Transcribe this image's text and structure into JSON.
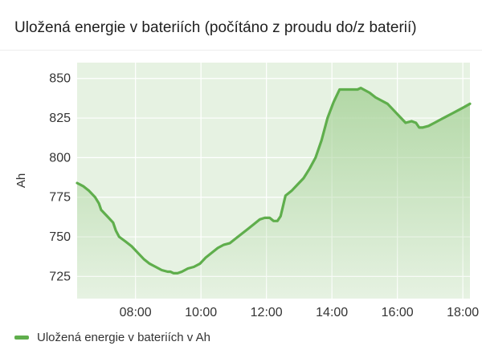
{
  "panel": {
    "title": "Uložená energie v bateriích (počítáno z proudu do/z baterií)"
  },
  "colors": {
    "line": "#5fae4c",
    "plot_background": "#e6f2e2",
    "grid": "#ffffff"
  },
  "chart_data": {
    "type": "area",
    "title": "Uložená energie v bateriích (počítáno z proudu do/z baterií)",
    "xlabel": "",
    "ylabel": "Ah",
    "x_tick_labels": [
      "08:00",
      "10:00",
      "12:00",
      "14:00",
      "16:00",
      "18:00"
    ],
    "y_tick_labels": [
      "725",
      "750",
      "775",
      "800",
      "825",
      "850"
    ],
    "xlim": [
      "06:13",
      "18:13"
    ],
    "ylim": [
      711,
      860
    ],
    "grid": true,
    "legend_position": "bottom-left",
    "series": [
      {
        "name": "Uložená energie v bateriích v Ah",
        "x": [
          "06:13",
          "06:24",
          "06:35",
          "06:46",
          "06:53",
          "06:57",
          "07:08",
          "07:19",
          "07:24",
          "07:30",
          "07:42",
          "07:53",
          "08:04",
          "08:15",
          "08:26",
          "08:37",
          "08:48",
          "08:59",
          "09:04",
          "09:10",
          "09:17",
          "09:25",
          "09:36",
          "09:47",
          "09:58",
          "10:09",
          "10:20",
          "10:31",
          "10:42",
          "10:53",
          "11:04",
          "11:15",
          "11:26",
          "11:37",
          "11:48",
          "11:57",
          "12:06",
          "12:13",
          "12:20",
          "12:26",
          "12:35",
          "12:46",
          "12:57",
          "13:08",
          "13:19",
          "13:30",
          "13:41",
          "13:52",
          "14:03",
          "14:14",
          "14:25",
          "14:36",
          "14:47",
          "14:53",
          "14:58",
          "15:09",
          "15:20",
          "15:31",
          "15:42",
          "15:53",
          "16:04",
          "16:15",
          "16:26",
          "16:34",
          "16:40",
          "16:46",
          "16:57",
          "17:08",
          "17:19",
          "17:30",
          "17:41",
          "17:52",
          "18:03",
          "18:13"
        ],
        "values": [
          784,
          782,
          779,
          775,
          771,
          767,
          763,
          759,
          754,
          750,
          747,
          744,
          740,
          736,
          733,
          731,
          729,
          728,
          728,
          727,
          727,
          728,
          730,
          731,
          733,
          737,
          740,
          743,
          745,
          746,
          749,
          752,
          755,
          758,
          761,
          762,
          762,
          760,
          760,
          763,
          776,
          779,
          783,
          787,
          793,
          800,
          811,
          825,
          835,
          843,
          843,
          843,
          843,
          844,
          843,
          841,
          838,
          836,
          834,
          830,
          826,
          822,
          823,
          822,
          819,
          819,
          820,
          822,
          824,
          826,
          828,
          830,
          832,
          834
        ]
      }
    ]
  },
  "legend": {
    "label": "Uložená energie v bateriích v Ah"
  }
}
